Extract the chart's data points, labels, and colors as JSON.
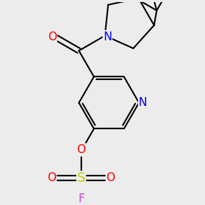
{
  "background_color": "#ececec",
  "bond_color": "#000000",
  "bond_lw": 1.6,
  "atom_colors": {
    "N": "#0000ee",
    "O": "#ff0000",
    "S": "#cccc00",
    "F": "#cc44cc"
  },
  "font_size": 11,
  "fig_size": [
    3.0,
    3.0
  ],
  "dpi": 100
}
